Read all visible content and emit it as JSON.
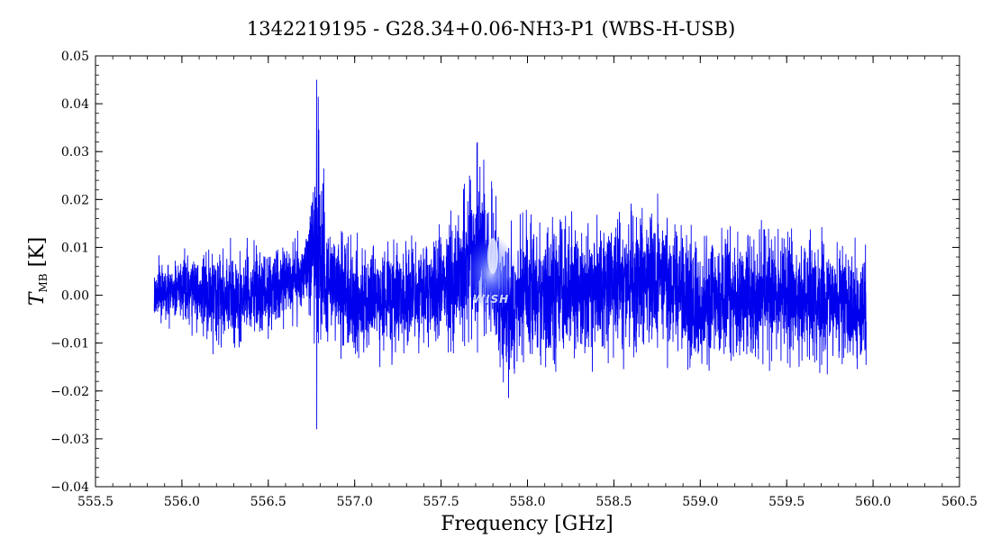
{
  "chart_data": {
    "type": "line",
    "title": "1342219195 - G28.34+0.06-NH3-P1 (WBS-H-USB)",
    "xlabel": "Frequency [GHz]",
    "ylabel_main": "T",
    "ylabel_sub": "MB",
    "ylabel_unit": " [K]",
    "xlim": [
      555.5,
      560.5
    ],
    "ylim": [
      -0.04,
      0.05
    ],
    "x_ticks": [
      555.5,
      556.0,
      556.5,
      557.0,
      557.5,
      558.0,
      558.5,
      559.0,
      559.5,
      560.0,
      560.5
    ],
    "x_tick_labels": [
      "555.5",
      "556.0",
      "556.5",
      "557.0",
      "557.5",
      "558.0",
      "558.5",
      "559.0",
      "559.5",
      "560.0",
      "560.5"
    ],
    "y_ticks": [
      -0.04,
      -0.03,
      -0.02,
      -0.01,
      0.0,
      0.01,
      0.02,
      0.03,
      0.04,
      0.05
    ],
    "y_tick_labels": [
      "−0.04",
      "−0.03",
      "−0.02",
      "−0.01",
      "0.00",
      "0.01",
      "0.02",
      "0.03",
      "0.04",
      "0.05"
    ],
    "grid": false,
    "line_color": "#0000ee",
    "series": [
      {
        "x_range": [
          555.84,
          559.96
        ],
        "noise_envelope": [
          {
            "x": 555.84,
            "min": -0.007,
            "max": 0.008
          },
          {
            "x": 556.0,
            "min": -0.008,
            "max": 0.01
          },
          {
            "x": 556.25,
            "min": -0.014,
            "max": 0.012
          },
          {
            "x": 556.5,
            "min": -0.01,
            "max": 0.012
          },
          {
            "x": 556.72,
            "min": -0.006,
            "max": 0.015
          },
          {
            "x": 556.76,
            "min": -0.01,
            "max": 0.03
          },
          {
            "x": 556.78,
            "min": -0.028,
            "max": 0.045
          },
          {
            "x": 556.85,
            "min": -0.012,
            "max": 0.018
          },
          {
            "x": 557.0,
            "min": -0.016,
            "max": 0.013
          },
          {
            "x": 557.5,
            "min": -0.013,
            "max": 0.015
          },
          {
            "x": 557.71,
            "min": -0.012,
            "max": 0.032
          },
          {
            "x": 557.88,
            "min": -0.022,
            "max": 0.015
          },
          {
            "x": 558.0,
            "min": -0.016,
            "max": 0.018
          },
          {
            "x": 558.5,
            "min": -0.016,
            "max": 0.02
          },
          {
            "x": 558.75,
            "min": -0.014,
            "max": 0.023
          },
          {
            "x": 559.0,
            "min": -0.019,
            "max": 0.015
          },
          {
            "x": 559.5,
            "min": -0.015,
            "max": 0.016
          },
          {
            "x": 559.96,
            "min": -0.018,
            "max": 0.012
          }
        ],
        "features": [
          {
            "x": 556.78,
            "min": -0.028,
            "max": 0.045
          },
          {
            "x": 557.71,
            "min": -0.012,
            "max": 0.032
          }
        ]
      }
    ]
  },
  "watermark": {
    "text": "WISH"
  }
}
